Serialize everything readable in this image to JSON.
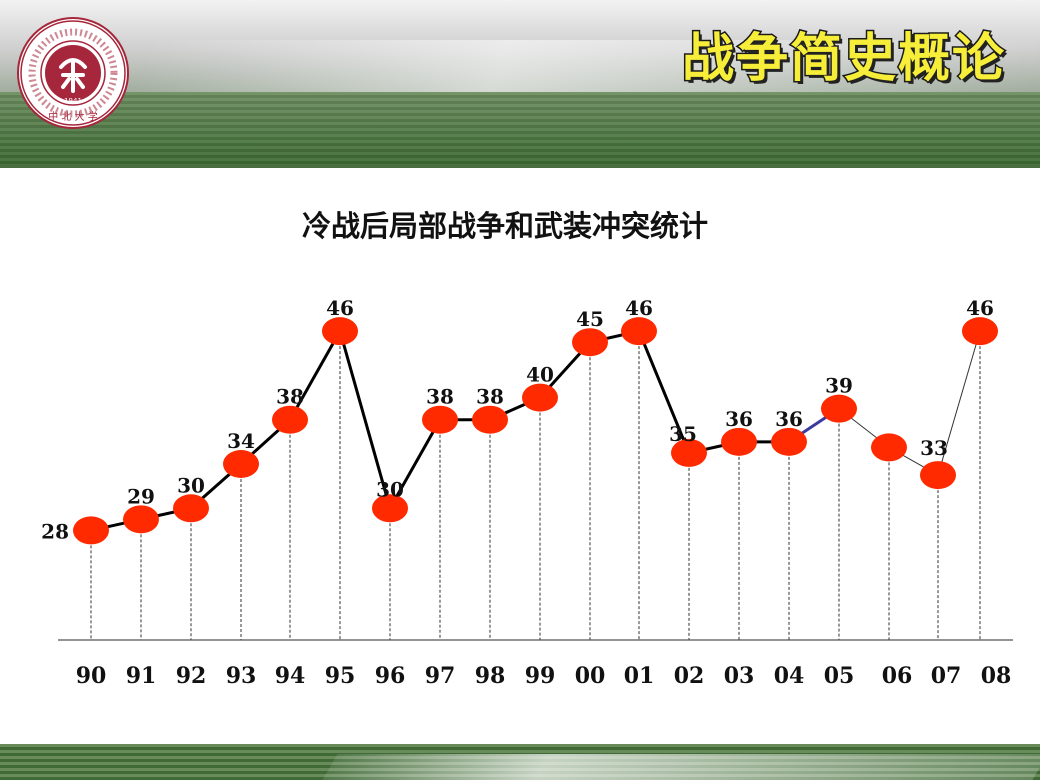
{
  "banner": {
    "title": "战争简史概论"
  },
  "colors": {
    "marker": "#ff2a00",
    "line": "#000000",
    "accent_line": "#3a3aa0",
    "title_yellow": "#f6ee38"
  },
  "chart_data": {
    "type": "line",
    "title": "冷战后局部战争和武装冲突统计",
    "xlabel": "",
    "ylabel": "",
    "categories": [
      "90",
      "91",
      "92",
      "93",
      "94",
      "95",
      "96",
      "97",
      "98",
      "99",
      "00",
      "01",
      "02",
      "03",
      "04",
      "05",
      "06",
      "07",
      "08"
    ],
    "values": [
      28,
      29,
      30,
      34,
      38,
      46,
      30,
      38,
      38,
      40,
      45,
      46,
      35,
      36,
      36,
      39,
      null,
      33,
      46
    ],
    "point_labels": [
      "28",
      "29",
      "30",
      "34",
      "38",
      "46",
      "30",
      "38",
      "38",
      "40",
      "45",
      "46",
      "35",
      "36",
      "36",
      "39",
      "",
      "33",
      "46"
    ],
    "unlabeled_points": [
      {
        "category_index": 16,
        "value": 35.5
      }
    ],
    "ylim": [
      20,
      48
    ],
    "grid": false,
    "drop_lines": true
  }
}
